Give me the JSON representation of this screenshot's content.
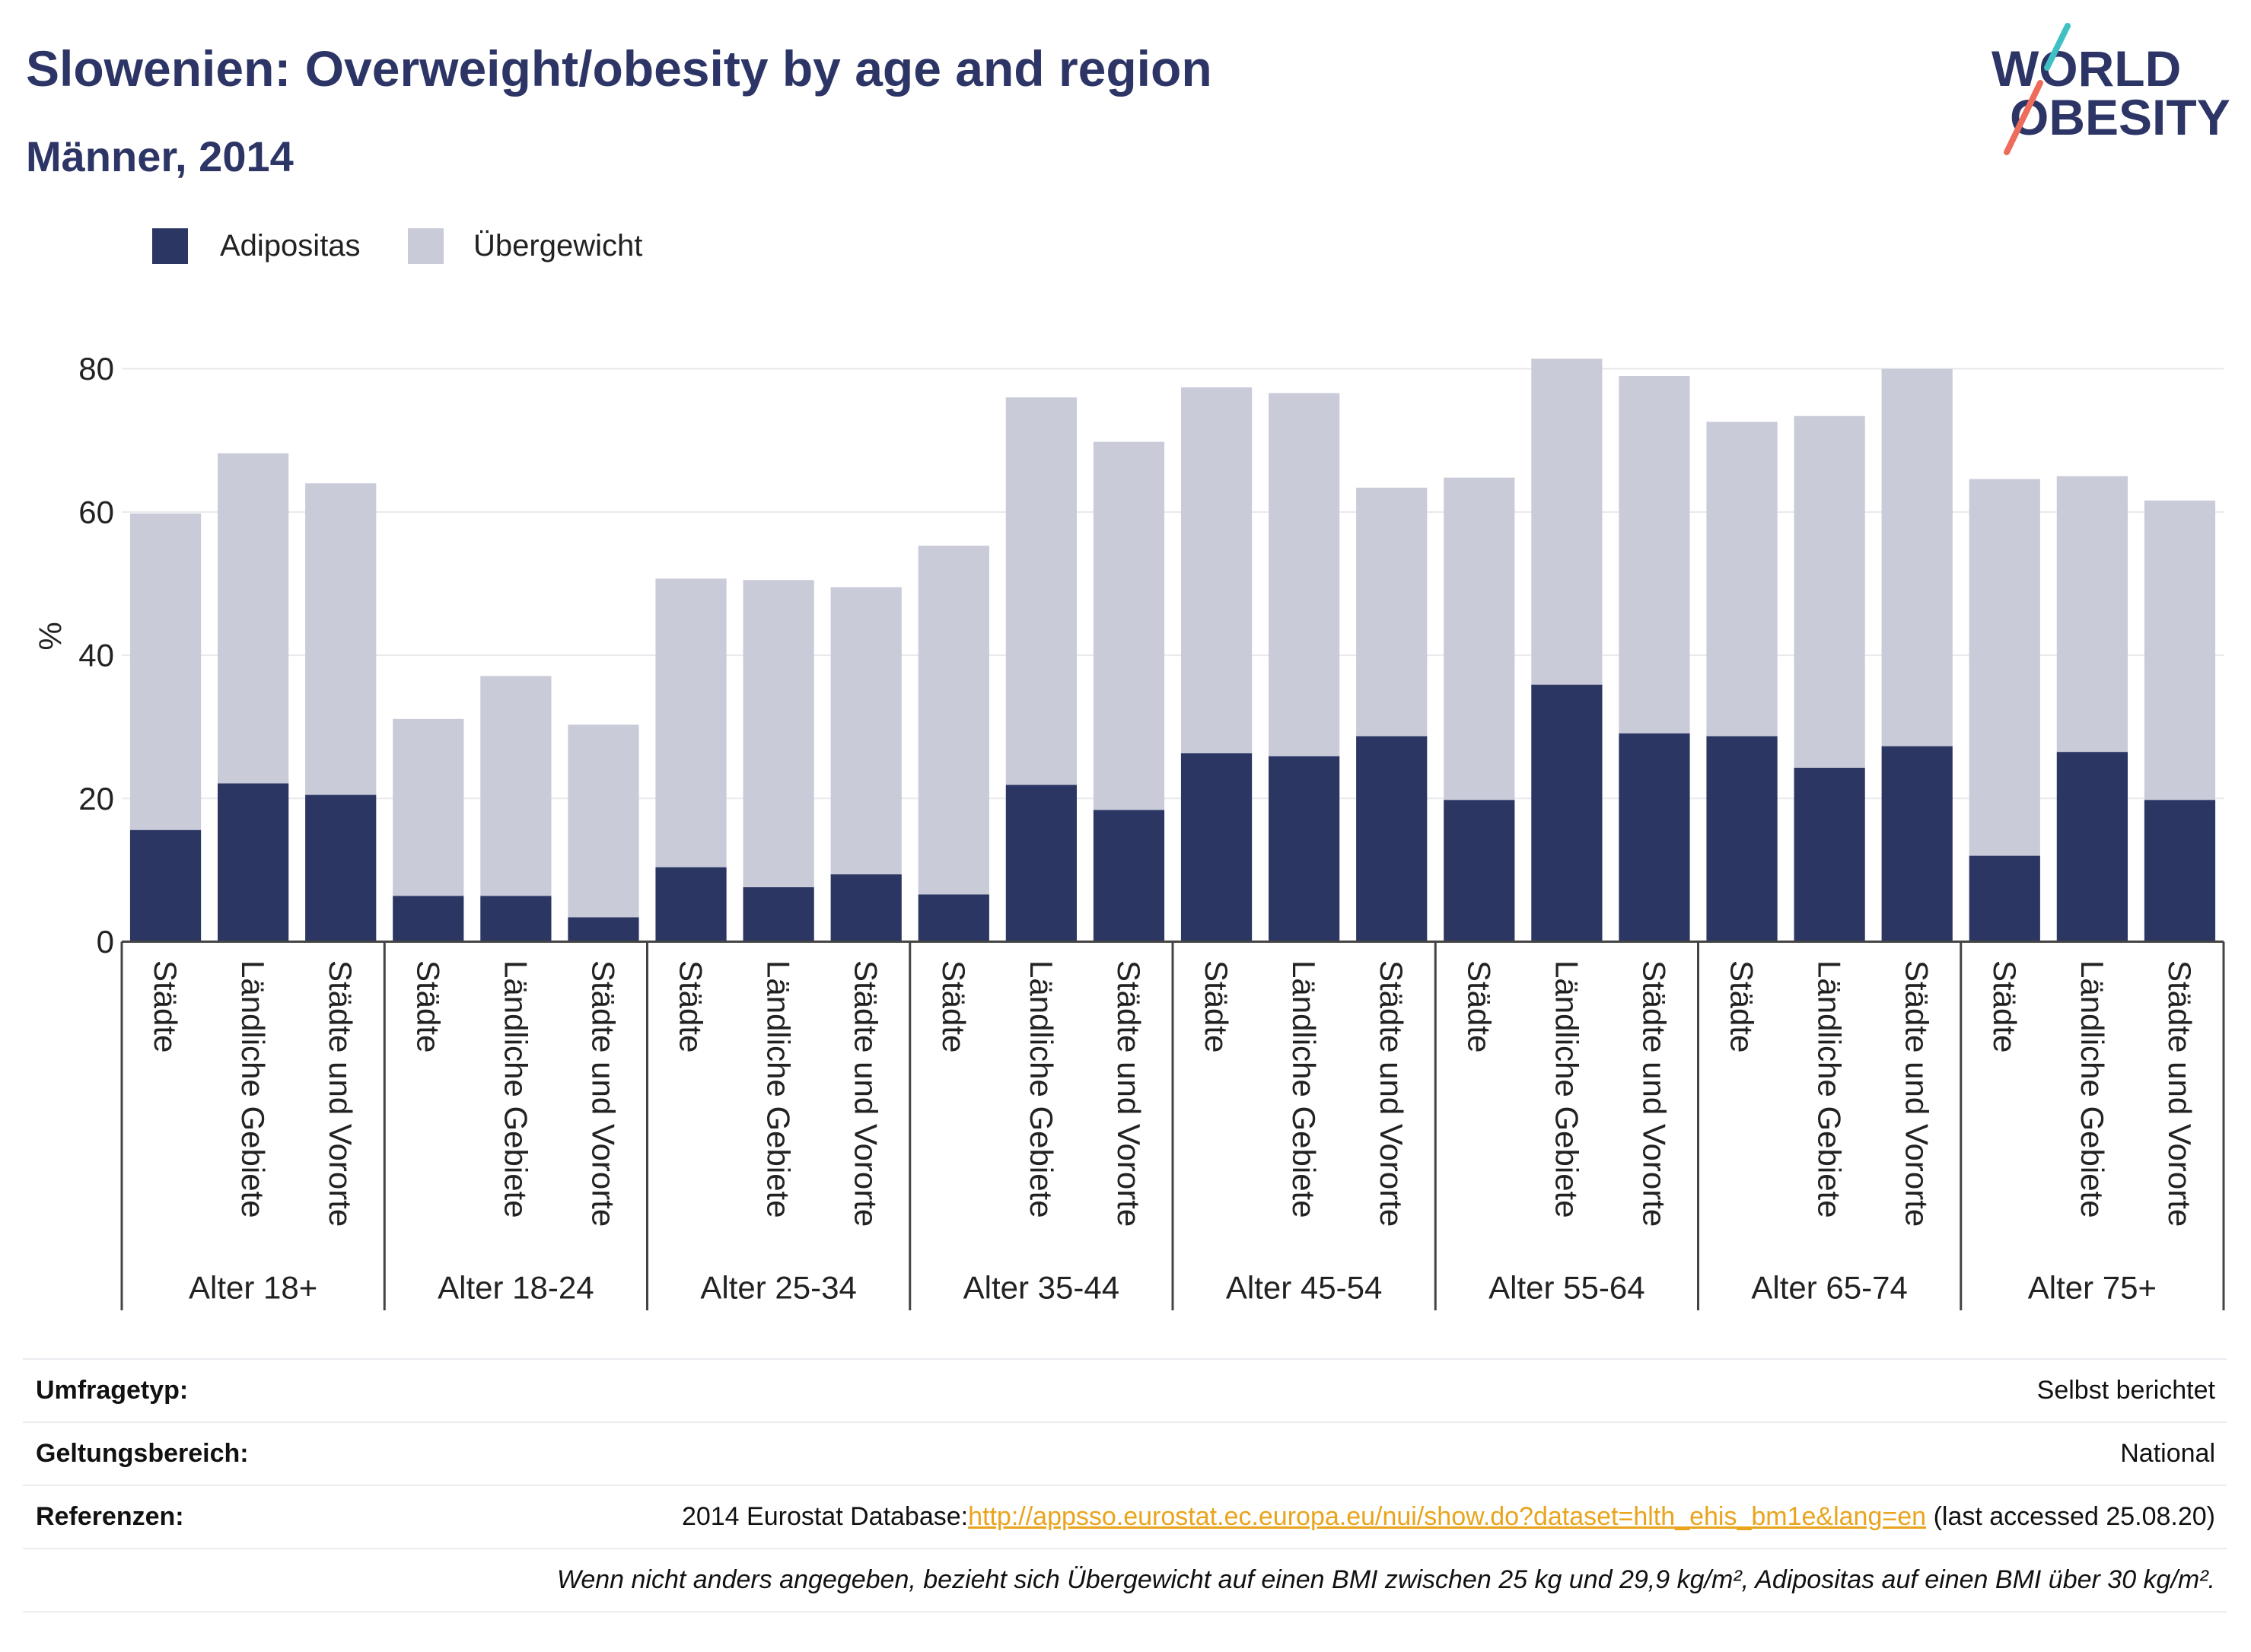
{
  "header": {
    "title": "Slowenien: Overweight/obesity by age and region",
    "subtitle": "Männer, 2014"
  },
  "logo": {
    "line1": "WORLD",
    "line2": "OBESITY"
  },
  "colors": {
    "title": "#2c3565",
    "adipositas": "#2b3663",
    "uebergewicht": "#c9cbd9",
    "link": "#e9a41d",
    "logo_teal": "#41c0c4",
    "logo_coral": "#ee6c5b"
  },
  "legend": [
    {
      "label": "Adipositas",
      "color": "#2b3663"
    },
    {
      "label": "Übergewicht",
      "color": "#c9cbd9"
    }
  ],
  "chart_data": {
    "type": "bar",
    "stacked": true,
    "title": "Slowenien: Overweight/obesity by age and region",
    "subtitle": "Männer, 2014",
    "xlabel": "",
    "ylabel": "%",
    "ylim": [
      0,
      85.7
    ],
    "yticks": [
      0,
      20,
      40,
      60,
      80
    ],
    "grid": true,
    "legend_position": "top-left",
    "group_labels": [
      "Alter 18+",
      "Alter 18-24",
      "Alter 25-34",
      "Alter 35-44",
      "Alter 45-54",
      "Alter 55-64",
      "Alter 65-74",
      "Alter 75+"
    ],
    "categories": [
      "Städte",
      "Ländliche Gebiete",
      "Städte und Vororte",
      "Städte",
      "Ländliche Gebiete",
      "Städte und Vororte",
      "Städte",
      "Ländliche Gebiete",
      "Städte und Vororte",
      "Städte",
      "Ländliche Gebiete",
      "Städte und Vororte",
      "Städte",
      "Ländliche Gebiete",
      "Städte und Vororte",
      "Städte",
      "Ländliche Gebiete",
      "Städte und Vororte",
      "Städte",
      "Ländliche Gebiete",
      "Städte und Vororte",
      "Städte",
      "Ländliche Gebiete",
      "Städte und Vororte"
    ],
    "series": [
      {
        "name": "Adipositas",
        "color": "#2b3663",
        "values": [
          15.6,
          22.1,
          20.5,
          6.4,
          6.4,
          3.4,
          10.4,
          7.6,
          9.4,
          6.6,
          21.9,
          18.4,
          26.3,
          25.9,
          28.7,
          19.8,
          35.9,
          29.1,
          28.7,
          24.3,
          27.3,
          12.0,
          26.5,
          19.8
        ]
      },
      {
        "name": "Übergewicht",
        "color": "#c9cbd9",
        "values": [
          44.2,
          46.1,
          43.5,
          24.7,
          30.7,
          26.9,
          40.3,
          42.9,
          40.1,
          48.7,
          54.1,
          51.4,
          51.1,
          50.7,
          34.7,
          45.0,
          45.5,
          49.9,
          43.9,
          49.1,
          52.7,
          52.6,
          38.5,
          41.8
        ]
      }
    ]
  },
  "footer": {
    "survey_type": {
      "label": "Umfragetyp:",
      "value": "Selbst berichtet"
    },
    "scope": {
      "label": "Geltungsbereich:",
      "value": "National"
    },
    "references": {
      "label": "Referenzen:",
      "prefix": "2014 Eurostat Database:",
      "link": "http://appsso.eurostat.ec.europa.eu/nui/show.do?dataset=hlth_ehis_bm1e&lang=en",
      "suffix": "(last accessed 25.08.20)"
    },
    "note": "Wenn nicht anders angegeben, bezieht sich Übergewicht auf einen BMI zwischen 25 kg und 29,9 kg/m², Adipositas auf einen BMI über 30 kg/m²."
  }
}
